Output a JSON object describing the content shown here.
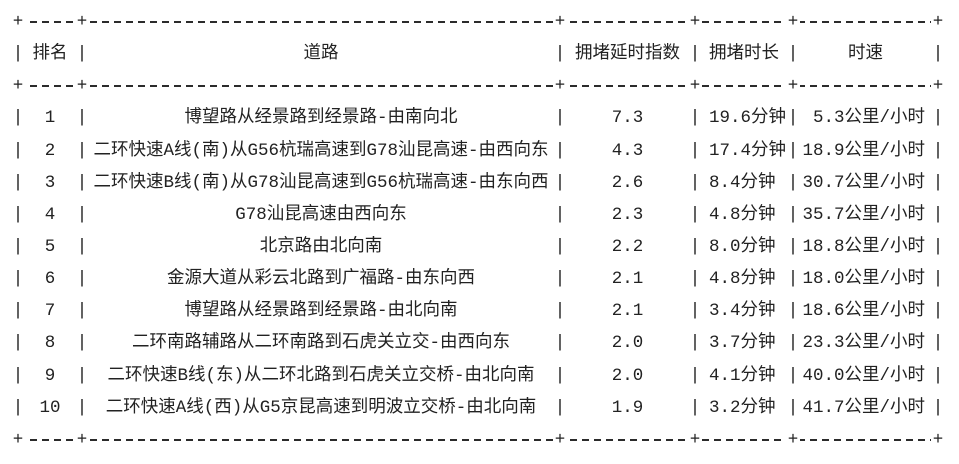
{
  "table": {
    "headers": [
      "排名",
      "道路",
      "拥堵延时指数",
      "拥堵时长",
      "时速"
    ],
    "rows": [
      {
        "rank": "1",
        "road": "博望路从经景路到经景路-由南向北",
        "delay_index": "7.3",
        "duration": "19.6分钟",
        "speed": "5.3公里/小时"
      },
      {
        "rank": "2",
        "road": "二环快速A线(南)从G56杭瑞高速到G78汕昆高速-由西向东",
        "delay_index": "4.3",
        "duration": "17.4分钟",
        "speed": "18.9公里/小时"
      },
      {
        "rank": "3",
        "road": "二环快速B线(南)从G78汕昆高速到G56杭瑞高速-由东向西",
        "delay_index": "2.6",
        "duration": "8.4分钟",
        "speed": "30.7公里/小时"
      },
      {
        "rank": "4",
        "road": "G78汕昆高速由西向东",
        "delay_index": "2.3",
        "duration": "4.8分钟",
        "speed": "35.7公里/小时"
      },
      {
        "rank": "5",
        "road": "北京路由北向南",
        "delay_index": "2.2",
        "duration": "8.0分钟",
        "speed": "18.8公里/小时"
      },
      {
        "rank": "6",
        "road": "金源大道从彩云北路到广福路-由东向西",
        "delay_index": "2.1",
        "duration": "4.8分钟",
        "speed": "18.0公里/小时"
      },
      {
        "rank": "7",
        "road": "博望路从经景路到经景路-由北向南",
        "delay_index": "2.1",
        "duration": "3.4分钟",
        "speed": "18.6公里/小时"
      },
      {
        "rank": "8",
        "road": "二环南路辅路从二环南路到石虎关立交-由西向东",
        "delay_index": "2.0",
        "duration": "3.7分钟",
        "speed": "23.3公里/小时"
      },
      {
        "rank": "9",
        "road": "二环快速B线(东)从二环北路到石虎关立交桥-由北向南",
        "delay_index": "2.0",
        "duration": "4.1分钟",
        "speed": "40.0公里/小时"
      },
      {
        "rank": "10",
        "road": "二环快速A线(西)从G5京昆高速到明波立交桥-由北向南",
        "delay_index": "1.9",
        "duration": "3.2分钟",
        "speed": "41.7公里/小时"
      }
    ]
  },
  "border": {
    "corner": "+",
    "vertical": "|"
  },
  "colors": {
    "text": "#222222",
    "line": "#2b2b2b",
    "background": "#ffffff"
  },
  "chart_data": {
    "type": "table",
    "title": "",
    "columns": [
      "排名",
      "道路",
      "拥堵延时指数",
      "拥堵时长",
      "时速"
    ],
    "rows": [
      [
        1,
        "博望路从经景路到经景路-由南向北",
        7.3,
        "19.6分钟",
        "5.3公里/小时"
      ],
      [
        2,
        "二环快速A线(南)从G56杭瑞高速到G78汕昆高速-由西向东",
        4.3,
        "17.4分钟",
        "18.9公里/小时"
      ],
      [
        3,
        "二环快速B线(南)从G78汕昆高速到G56杭瑞高速-由东向西",
        2.6,
        "8.4分钟",
        "30.7公里/小时"
      ],
      [
        4,
        "G78汕昆高速由西向东",
        2.3,
        "4.8分钟",
        "35.7公里/小时"
      ],
      [
        5,
        "北京路由北向南",
        2.2,
        "8.0分钟",
        "18.8公里/小时"
      ],
      [
        6,
        "金源大道从彩云北路到广福路-由东向西",
        2.1,
        "4.8分钟",
        "18.0公里/小时"
      ],
      [
        7,
        "博望路从经景路到经景路-由北向南",
        2.1,
        "3.4分钟",
        "18.6公里/小时"
      ],
      [
        8,
        "二环南路辅路从二环南路到石虎关立交-由西向东",
        2.0,
        "3.7分钟",
        "23.3公里/小时"
      ],
      [
        9,
        "二环快速B线(东)从二环北路到石虎关立交桥-由北向南",
        2.0,
        "4.1分钟",
        "40.0公里/小时"
      ],
      [
        10,
        "二环快速A线(西)从G5京昆高速到明波立交桥-由北向南",
        1.9,
        "3.2分钟",
        "41.7公里/小时"
      ]
    ]
  }
}
